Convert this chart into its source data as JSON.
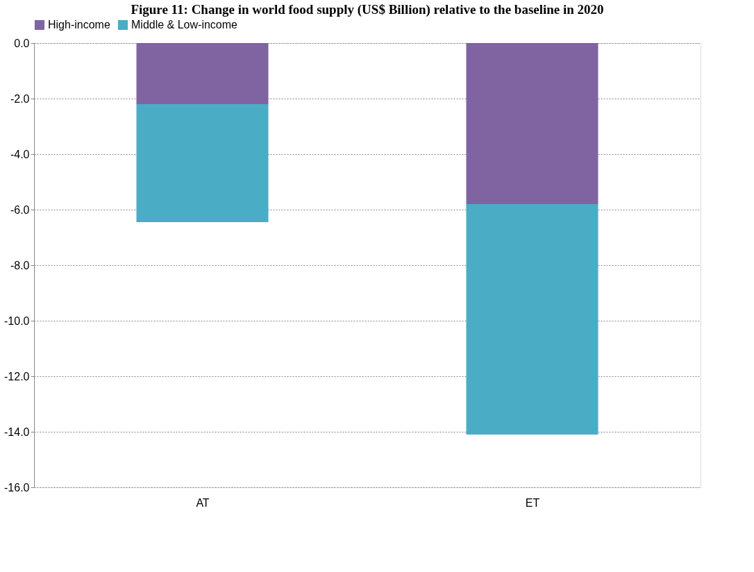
{
  "chart_data": {
    "type": "bar",
    "title": "Figure 11: Change in world food supply (US$ Billion) relative to the baseline in 2020",
    "categories": [
      "AT",
      "ET"
    ],
    "stacked": true,
    "series": [
      {
        "name": "High-income",
        "color": "#8064a2",
        "values": [
          -2.2,
          -5.8
        ]
      },
      {
        "name": "Middle & Low-income",
        "color": "#4bacc6",
        "values": [
          -4.25,
          -8.3
        ]
      }
    ],
    "ylim": [
      -16,
      0
    ],
    "yticks": [
      {
        "value": 0,
        "label": "0.0"
      },
      {
        "value": -2,
        "label": "-2.0"
      },
      {
        "value": -4,
        "label": "-4.0"
      },
      {
        "value": -6,
        "label": "-6.0"
      },
      {
        "value": -8,
        "label": "-8.0"
      },
      {
        "value": -10,
        "label": "-10.0"
      },
      {
        "value": -12,
        "label": "-12.0"
      },
      {
        "value": -14,
        "label": "-14.0"
      },
      {
        "value": -16,
        "label": "-16.0"
      }
    ],
    "grid": "y",
    "legend": "top"
  }
}
